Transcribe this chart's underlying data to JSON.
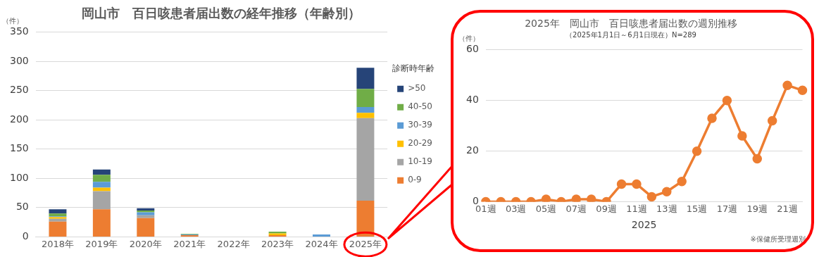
{
  "chart_data": [
    {
      "type": "bar",
      "title": "岡山市　百日咳患者届出数の経年推移（年齢別）",
      "ylabel": "（件）",
      "categories": [
        "2018年",
        "2019年",
        "2020年",
        "2021年",
        "2022年",
        "2023年",
        "2024年",
        "2025年"
      ],
      "stacked": true,
      "ylim": [
        0,
        350
      ],
      "yticks": [
        0,
        50,
        100,
        150,
        200,
        250,
        300,
        350
      ],
      "grid": "y",
      "legend": "right",
      "legend_title": "診断時年齢",
      "series": [
        {
          "name": "0-9",
          "color": "#ed7d31",
          "values": [
            26,
            47,
            32,
            3,
            0,
            3,
            0,
            62
          ]
        },
        {
          "name": "10-19",
          "color": "#a5a5a5",
          "values": [
            5,
            31,
            5,
            0,
            0,
            0,
            0,
            141
          ]
        },
        {
          "name": "20-29",
          "color": "#ffc000",
          "values": [
            3,
            6,
            0,
            0,
            0,
            3,
            0,
            9
          ]
        },
        {
          "name": "30-39",
          "color": "#5b9bd5",
          "values": [
            1,
            10,
            5,
            1,
            0,
            0,
            4,
            10
          ]
        },
        {
          "name": "40-50",
          "color": "#70ad47",
          "values": [
            5,
            12,
            3,
            1,
            0,
            3,
            0,
            31
          ]
        },
        {
          "name": ">50",
          "color": "#264478",
          "values": [
            7,
            9,
            4,
            0,
            0,
            0,
            0,
            36
          ]
        }
      ]
    },
    {
      "type": "line",
      "title": "2025年　岡山市　百日咳患者届出数の週別推移",
      "subtitle": "（2025年1月1日～6月1日現在）N=289",
      "ylabel": "（件）",
      "xlabel": "2025",
      "categories": [
        "01週",
        null,
        "03週",
        null,
        "05週",
        null,
        "07週",
        null,
        "09週",
        null,
        "11週",
        null,
        "13週",
        null,
        "15週",
        null,
        "17週",
        null,
        "19週",
        null,
        "21週",
        null
      ],
      "ylim": [
        0,
        60
      ],
      "yticks": [
        0,
        20,
        40,
        60
      ],
      "grid": "y",
      "marker": "circle",
      "annotations": [
        "※保健所受理週別"
      ],
      "series": [
        {
          "color": "#ed7d31",
          "values": [
            0,
            0,
            0,
            0,
            1,
            0,
            1,
            1,
            0,
            7,
            7,
            2,
            4,
            8,
            20,
            33,
            40,
            26,
            17,
            32,
            46,
            44
          ]
        }
      ]
    }
  ]
}
